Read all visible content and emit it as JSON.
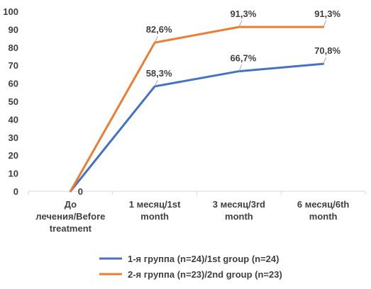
{
  "chart_data": {
    "type": "line",
    "categories": [
      [
        "До",
        "лечения/Before",
        "treatment"
      ],
      [
        "1 месяц/1st",
        "month"
      ],
      [
        "3 месяц/3rd",
        "month"
      ],
      [
        "6 месяц/6th",
        "month"
      ]
    ],
    "ylim": [
      0,
      100
    ],
    "yticks": [
      0,
      10,
      20,
      30,
      40,
      50,
      60,
      70,
      80,
      90,
      100
    ],
    "grid": false,
    "legend_position": "bottom",
    "series": [
      {
        "name": "1-я группа (n=24)/1st group (n=24)",
        "color": "#4472C4",
        "values": [
          0,
          58.3,
          66.7,
          70.8
        ],
        "labels": [
          "0",
          "58,3%",
          "66,7%",
          "70,8%"
        ]
      },
      {
        "name": "2-я группа (n=23)/2nd group (n=23)",
        "color": "#ED7D31",
        "values": [
          0,
          82.6,
          91.3,
          91.3
        ],
        "labels": [
          "",
          "82,6%",
          "91,3%",
          "91,3%"
        ]
      }
    ]
  }
}
